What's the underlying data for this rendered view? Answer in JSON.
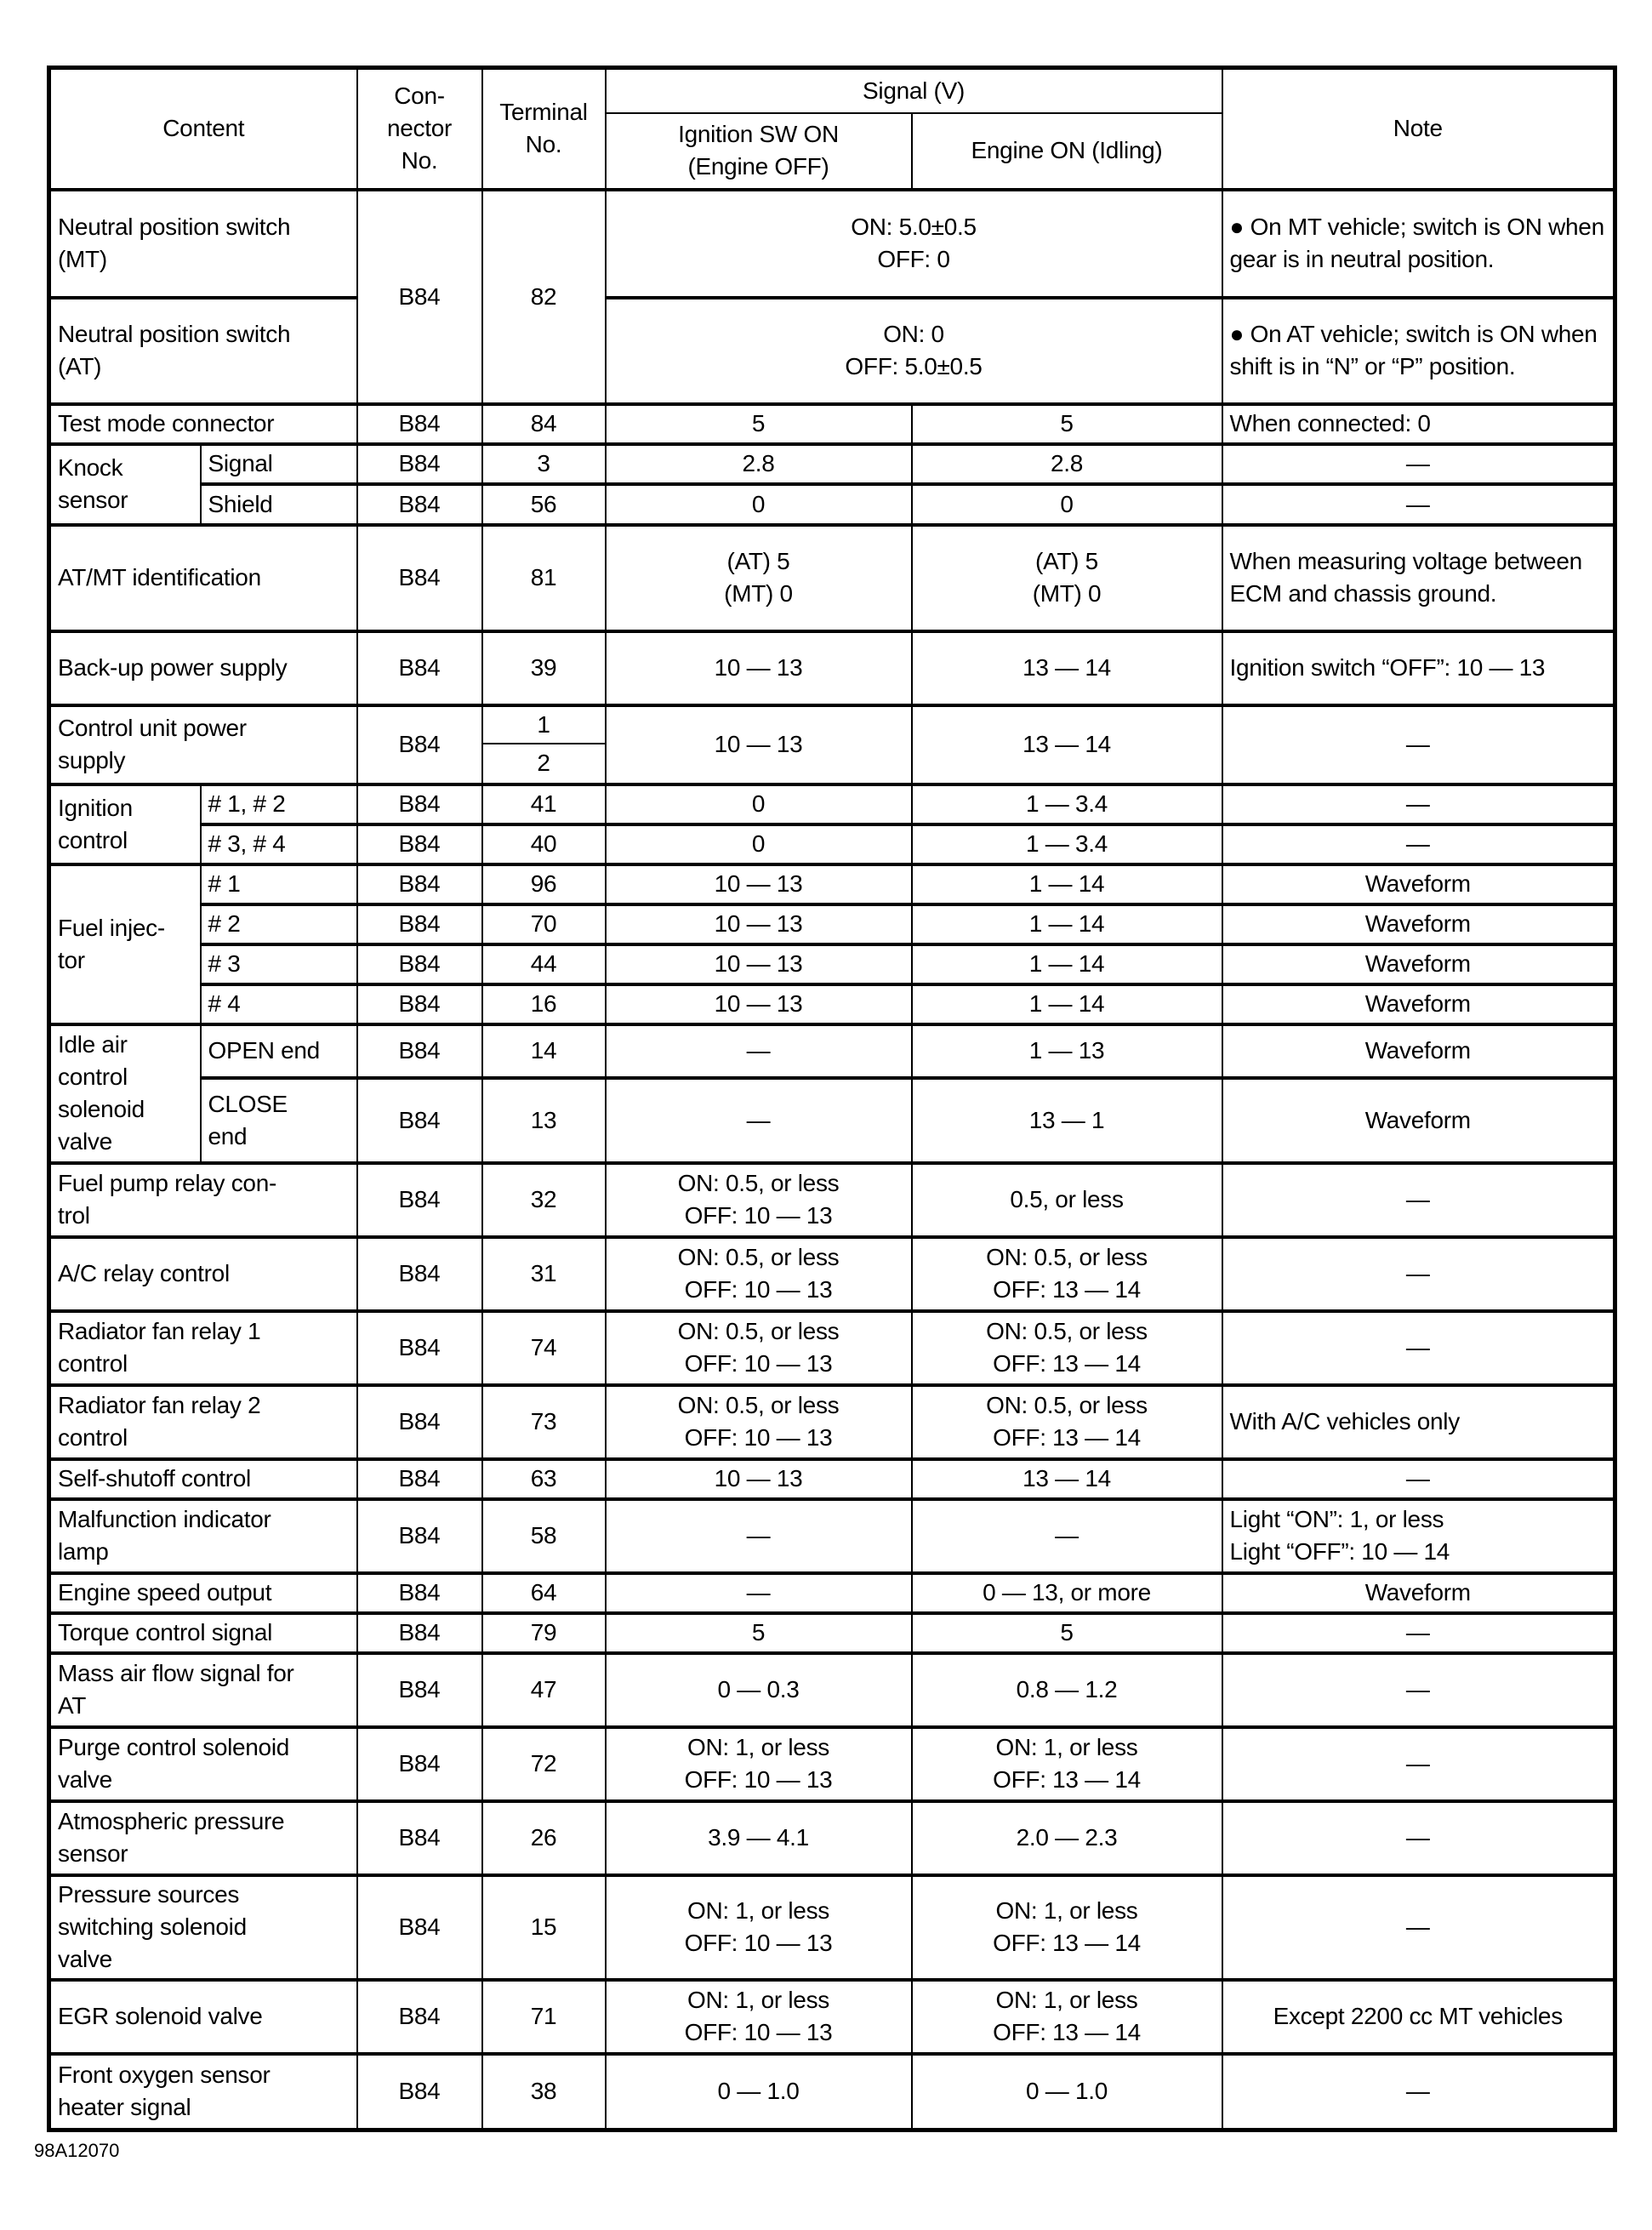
{
  "header": {
    "content": "Content",
    "connector": "Con-\nnector\nNo.",
    "terminal": "Terminal\nNo.",
    "signal": "Signal (V)",
    "ign": "Ignition SW ON\n(Engine OFF)",
    "engine": "Engine ON (Idling)",
    "note": "Note"
  },
  "rows": [
    {
      "content": "Neutral position switch\n(MT)",
      "conn": "B84",
      "term": "82",
      "signal": "ON: 5.0±0.5\nOFF: 0",
      "note": "●  On MT vehicle; switch is ON when gear is in neutral position."
    },
    {
      "content": "Neutral position switch\n(AT)",
      "signal": "ON: 0\nOFF: 5.0±0.5",
      "note": "●  On AT vehicle; switch is ON when shift is in “N” or “P” position."
    },
    {
      "content": "Test mode connector",
      "conn": "B84",
      "term": "84",
      "ign": "5",
      "eng": "5",
      "note": "When connected: 0"
    },
    {
      "group": "Knock\nsensor",
      "content": "Signal",
      "conn": "B84",
      "term": "3",
      "ign": "2.8",
      "eng": "2.8",
      "note": "—"
    },
    {
      "content": "Shield",
      "conn": "B84",
      "term": "56",
      "ign": "0",
      "eng": "0",
      "note": "—"
    },
    {
      "content": "AT/MT identification",
      "conn": "B84",
      "term": "81",
      "ign": "(AT) 5\n(MT) 0",
      "eng": "(AT) 5\n(MT) 0",
      "note": "When measuring voltage between ECM and chassis ground."
    },
    {
      "content": "Back-up power supply",
      "conn": "B84",
      "term": "39",
      "ign": "10 — 13",
      "eng": "13 — 14",
      "note": "Ignition switch “OFF”: 10 — 13"
    },
    {
      "content": "Control unit power\nsupply",
      "conn": "B84",
      "term": "1",
      "term2": "2",
      "ign": "10 — 13",
      "eng": "13 — 14",
      "note": "—"
    },
    {
      "group": "Ignition\ncontrol",
      "content": "# 1, # 2",
      "conn": "B84",
      "term": "41",
      "ign": "0",
      "eng": "1 — 3.4",
      "note": "—"
    },
    {
      "content": "# 3, # 4",
      "conn": "B84",
      "term": "40",
      "ign": "0",
      "eng": "1 — 3.4",
      "note": "—"
    },
    {
      "group": "Fuel injec-\ntor",
      "content": "# 1",
      "conn": "B84",
      "term": "96",
      "ign": "10 — 13",
      "eng": "1 — 14",
      "note": "Waveform"
    },
    {
      "content": "# 2",
      "conn": "B84",
      "term": "70",
      "ign": "10 — 13",
      "eng": "1 — 14",
      "note": "Waveform"
    },
    {
      "content": "# 3",
      "conn": "B84",
      "term": "44",
      "ign": "10 — 13",
      "eng": "1 — 14",
      "note": "Waveform"
    },
    {
      "content": "# 4",
      "conn": "B84",
      "term": "16",
      "ign": "10 — 13",
      "eng": "1 — 14",
      "note": "Waveform"
    },
    {
      "group": "Idle air\ncontrol\nsolenoid\nvalve",
      "content": "OPEN end",
      "conn": "B84",
      "term": "14",
      "ign": "—",
      "eng": "1 — 13",
      "note": "Waveform"
    },
    {
      "content": "CLOSE\nend",
      "conn": "B84",
      "term": "13",
      "ign": "—",
      "eng": "13 — 1",
      "note": "Waveform"
    },
    {
      "content": "Fuel pump relay con-\ntrol",
      "conn": "B84",
      "term": "32",
      "ign": "ON: 0.5, or less\nOFF: 10 — 13",
      "eng": "0.5, or less",
      "note": "—"
    },
    {
      "content": "A/C relay control",
      "conn": "B84",
      "term": "31",
      "ign": "ON: 0.5, or less\nOFF: 10 — 13",
      "eng": "ON: 0.5, or less\nOFF: 13 — 14",
      "note": "—"
    },
    {
      "content": "Radiator fan relay 1\ncontrol",
      "conn": "B84",
      "term": "74",
      "ign": "ON: 0.5, or less\nOFF: 10 — 13",
      "eng": "ON: 0.5, or less\nOFF: 13 — 14",
      "note": "—"
    },
    {
      "content": "Radiator fan relay 2\ncontrol",
      "conn": "B84",
      "term": "73",
      "ign": "ON: 0.5, or less\nOFF: 10 — 13",
      "eng": "ON: 0.5, or less\nOFF: 13 — 14",
      "note": "With A/C vehicles only"
    },
    {
      "content": "Self-shutoff control",
      "conn": "B84",
      "term": "63",
      "ign": "10 — 13",
      "eng": "13 — 14",
      "note": "—"
    },
    {
      "content": "Malfunction indicator\nlamp",
      "conn": "B84",
      "term": "58",
      "ign": "—",
      "eng": "—",
      "note": "Light “ON”: 1, or less\nLight “OFF”: 10 — 14"
    },
    {
      "content": "Engine speed output",
      "conn": "B84",
      "term": "64",
      "ign": "—",
      "eng": "0 — 13, or more",
      "note": "Waveform"
    },
    {
      "content": "Torque control signal",
      "conn": "B84",
      "term": "79",
      "ign": "5",
      "eng": "5",
      "note": "—"
    },
    {
      "content": "Mass air flow signal for\nAT",
      "conn": "B84",
      "term": "47",
      "ign": "0 — 0.3",
      "eng": "0.8 — 1.2",
      "note": "—"
    },
    {
      "content": "Purge control solenoid\nvalve",
      "conn": "B84",
      "term": "72",
      "ign": "ON: 1, or less\nOFF: 10 — 13",
      "eng": "ON: 1, or less\nOFF: 13 — 14",
      "note": "—"
    },
    {
      "content": "Atmospheric pressure\nsensor",
      "conn": "B84",
      "term": "26",
      "ign": "3.9 — 4.1",
      "eng": "2.0 — 2.3",
      "note": "—"
    },
    {
      "content": "Pressure sources\nswitching solenoid\nvalve",
      "conn": "B84",
      "term": "15",
      "ign": "ON: 1, or less\nOFF: 10 — 13",
      "eng": "ON: 1, or less\nOFF: 13 — 14",
      "note": "—"
    },
    {
      "content": "EGR solenoid valve",
      "conn": "B84",
      "term": "71",
      "ign": "ON: 1, or less\nOFF: 10 — 13",
      "eng": "ON: 1, or less\nOFF: 13 — 14",
      "note": "Except 2200 cc MT vehicles"
    },
    {
      "content": "Front oxygen sensor\nheater signal",
      "conn": "B84",
      "term": "38",
      "ign": "0 — 1.0",
      "eng": "0 — 1.0",
      "note": "—"
    }
  ],
  "footer": "98A12070"
}
